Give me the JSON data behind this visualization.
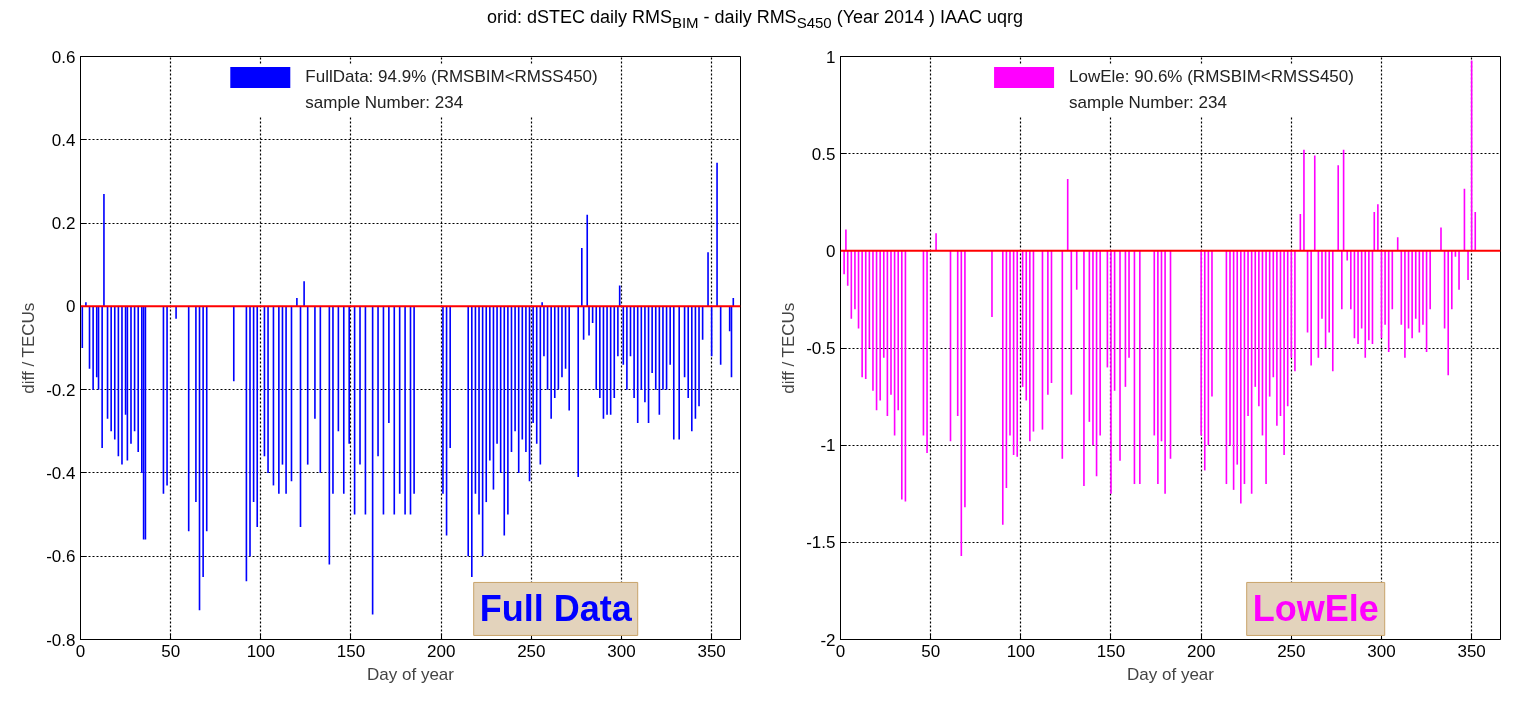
{
  "chart_data": [
    {
      "type": "bar",
      "title": "orid: dSTEC daily RMS$_{BIM}$ - daily RMS$_{S450}$ (Year 2014 ) IAAC uqrg",
      "xlabel": "Day of year",
      "ylabel": "diff / TECUs",
      "xlim": [
        0,
        366
      ],
      "xticks": [
        0,
        50,
        100,
        150,
        200,
        250,
        300,
        350
      ],
      "ylim": [
        -0.8,
        0.6
      ],
      "yticks": [
        -0.8,
        -0.6,
        -0.4,
        -0.2,
        0,
        0.2,
        0.4,
        0.6
      ],
      "grid": true,
      "legend": "top",
      "annotations": [
        "sample Number: 234",
        "Full Data"
      ],
      "ref_lines": [
        {
          "axis": "y",
          "value": 0,
          "color": "#ff0000"
        }
      ],
      "series": [
        {
          "name": "FullData: 94.9% (RMSBIM<RMSS450)",
          "color": "#0000ff",
          "x": [
            1,
            3,
            5,
            7,
            9,
            10,
            12,
            13,
            15,
            17,
            19,
            21,
            23,
            25,
            26,
            28,
            30,
            32,
            34,
            35,
            36,
            46,
            48,
            53,
            60,
            64,
            66,
            68,
            70,
            85,
            92,
            94,
            96,
            98,
            102,
            104,
            107,
            110,
            112,
            114,
            117,
            120,
            122,
            124,
            126,
            130,
            133,
            138,
            140,
            143,
            146,
            149,
            152,
            155,
            158,
            162,
            165,
            168,
            171,
            174,
            177,
            180,
            183,
            185,
            201,
            203,
            205,
            215,
            217,
            219,
            221,
            223,
            225,
            227,
            229,
            231,
            233,
            235,
            237,
            239,
            241,
            243,
            245,
            247,
            249,
            251,
            253,
            255,
            256,
            257,
            259,
            261,
            263,
            265,
            267,
            269,
            271,
            276,
            278,
            279,
            281,
            282,
            284,
            286,
            288,
            290,
            292,
            294,
            296,
            298,
            299,
            301,
            303,
            305,
            307,
            309,
            311,
            313,
            315,
            317,
            319,
            321,
            323,
            325,
            327,
            329,
            332,
            335,
            337,
            339,
            341,
            343,
            345,
            348,
            350,
            353,
            355,
            360,
            361,
            362
          ],
          "values": [
            -0.1,
            0.01,
            -0.15,
            -0.2,
            -0.17,
            -0.2,
            -0.34,
            0.27,
            -0.27,
            -0.3,
            -0.32,
            -0.36,
            -0.38,
            -0.26,
            -0.37,
            -0.33,
            -0.3,
            -0.35,
            -0.4,
            -0.56,
            -0.56,
            -0.45,
            -0.43,
            -0.03,
            -0.54,
            -0.47,
            -0.73,
            -0.65,
            -0.54,
            -0.18,
            -0.66,
            -0.6,
            -0.47,
            -0.53,
            -0.36,
            -0.4,
            -0.43,
            -0.45,
            -0.38,
            -0.45,
            -0.42,
            0.02,
            -0.53,
            0.06,
            -0.38,
            -0.27,
            -0.4,
            -0.62,
            -0.45,
            -0.3,
            -0.45,
            -0.33,
            -0.5,
            -0.38,
            -0.5,
            -0.74,
            -0.36,
            -0.5,
            -0.28,
            -0.5,
            -0.45,
            -0.5,
            -0.5,
            -0.45,
            -0.45,
            -0.55,
            -0.34,
            -0.6,
            -0.65,
            -0.45,
            -0.5,
            -0.6,
            -0.47,
            -0.37,
            -0.44,
            -0.33,
            -0.4,
            -0.55,
            -0.5,
            -0.35,
            -0.3,
            -0.4,
            -0.32,
            -0.35,
            -0.42,
            -0.28,
            -0.33,
            -0.38,
            0.01,
            -0.12,
            -0.2,
            -0.27,
            -0.22,
            -0.2,
            -0.17,
            -0.15,
            -0.25,
            -0.41,
            0.14,
            -0.08,
            0.22,
            -0.07,
            -0.04,
            -0.2,
            -0.22,
            -0.27,
            -0.26,
            -0.26,
            -0.22,
            -0.12,
            0.05,
            -0.14,
            -0.2,
            -0.12,
            -0.22,
            -0.28,
            -0.2,
            -0.23,
            -0.28,
            -0.16,
            -0.2,
            -0.26,
            -0.2,
            -0.2,
            -0.14,
            -0.32,
            -0.32,
            -0.17,
            -0.22,
            -0.3,
            -0.27,
            -0.24,
            -0.08,
            0.13,
            -0.12,
            0.345,
            -0.14,
            -0.06,
            -0.17,
            0.02
          ]
        }
      ]
    },
    {
      "type": "bar",
      "xlabel": "Day of year",
      "ylabel": "diff / TECUs",
      "xlim": [
        0,
        366
      ],
      "xticks": [
        0,
        50,
        100,
        150,
        200,
        250,
        300,
        350
      ],
      "ylim": [
        -2,
        1
      ],
      "yticks": [
        -2,
        -1.5,
        -1,
        -0.5,
        0,
        0.5,
        1
      ],
      "grid": true,
      "legend": "top",
      "annotations": [
        "sample Number: 234",
        "LowEle"
      ],
      "ref_lines": [
        {
          "axis": "y",
          "value": 0,
          "color": "#ff0000"
        }
      ],
      "series": [
        {
          "name": "LowEle: 90.6% (RMSBIM<RMSS450)",
          "color": "#ff00ff",
          "x": [
            2,
            3,
            4,
            6,
            8,
            10,
            12,
            14,
            16,
            18,
            20,
            22,
            24,
            26,
            28,
            30,
            32,
            34,
            36,
            46,
            48,
            53,
            61,
            65,
            67,
            69,
            84,
            90,
            92,
            94,
            96,
            98,
            101,
            103,
            105,
            107,
            112,
            115,
            117,
            123,
            126,
            128,
            131,
            135,
            138,
            140,
            142,
            144,
            148,
            150,
            152,
            155,
            158,
            160,
            163,
            166,
            174,
            176,
            178,
            180,
            183,
            200,
            202,
            204,
            206,
            214,
            216,
            218,
            220,
            222,
            224,
            226,
            228,
            230,
            232,
            234,
            236,
            238,
            240,
            242,
            244,
            246,
            248,
            250,
            252,
            255,
            257,
            259,
            261,
            263,
            265,
            267,
            269,
            271,
            273,
            276,
            278,
            279,
            281,
            283,
            285,
            287,
            289,
            291,
            293,
            295,
            296,
            298,
            300,
            302,
            304,
            306,
            309,
            311,
            313,
            315,
            317,
            319,
            321,
            323,
            325,
            327,
            333,
            335,
            337,
            339,
            341,
            343,
            346,
            348,
            350,
            352
          ],
          "values": [
            -0.12,
            0.11,
            -0.18,
            -0.35,
            -0.3,
            -0.4,
            -0.65,
            -0.66,
            -0.5,
            -0.72,
            -0.82,
            -0.77,
            -0.55,
            -0.85,
            -0.74,
            -0.95,
            -0.82,
            -1.28,
            -1.29,
            -0.95,
            -1.04,
            0.09,
            -0.98,
            -0.85,
            -1.57,
            -1.32,
            -0.34,
            -1.41,
            -1.22,
            -0.95,
            -1.05,
            -1.06,
            -0.7,
            -0.77,
            -0.98,
            -0.93,
            -0.92,
            -0.74,
            -0.68,
            -1.07,
            0.37,
            -0.74,
            -0.2,
            -1.21,
            -0.88,
            -1.0,
            -1.16,
            -0.95,
            -0.6,
            -1.25,
            -0.72,
            -1.08,
            -0.7,
            -0.55,
            -1.2,
            -1.2,
            -0.95,
            -1.2,
            -0.98,
            -1.25,
            -1.07,
            -0.95,
            -1.13,
            -1.0,
            -0.75,
            -1.2,
            -1.0,
            -1.23,
            -1.1,
            -1.3,
            -1.2,
            -0.85,
            -1.25,
            -0.7,
            -0.8,
            -0.95,
            -1.2,
            -0.75,
            -0.65,
            -0.9,
            -0.85,
            -1.05,
            -0.8,
            -0.55,
            -0.62,
            0.19,
            0.52,
            -0.42,
            -0.59,
            0.49,
            -0.55,
            -0.35,
            -0.5,
            -0.42,
            -0.62,
            0.44,
            -0.3,
            0.52,
            -0.05,
            -0.3,
            -0.45,
            -0.48,
            -0.4,
            -0.55,
            -0.46,
            -0.48,
            0.2,
            0.24,
            -0.45,
            -0.38,
            -0.52,
            -0.3,
            0.07,
            -0.38,
            -0.55,
            -0.4,
            -0.45,
            -0.35,
            -0.42,
            -0.38,
            -0.52,
            -0.3,
            0.12,
            -0.4,
            -0.64,
            -0.3,
            -0.03,
            -0.2,
            0.32,
            -0.15,
            0.98,
            0.2
          ]
        }
      ]
    }
  ]
}
